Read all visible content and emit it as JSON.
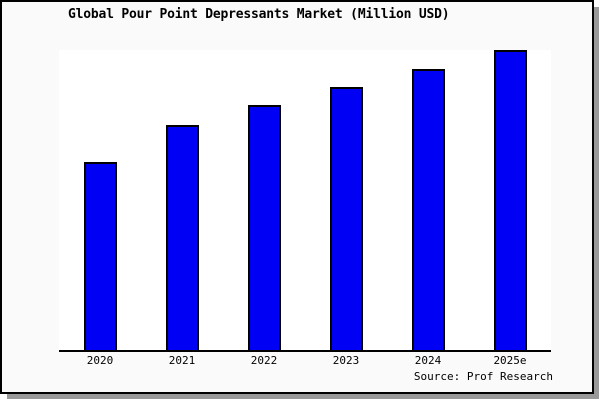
{
  "title": "Global Pour Point Depressants Market (Million USD)",
  "source_label": "Source: Prof Research",
  "colors": {
    "bar_fill": "#0000f5",
    "bar_border": "#000000",
    "frame_background": "#fafafa",
    "plot_background": "#ffffff",
    "frame_border": "#000000",
    "frame_shadow": "#999999",
    "text": "#000000"
  },
  "chart_data": {
    "type": "bar",
    "title": "Global Pour Point Depressants Market (Million USD)",
    "categories": [
      "2020",
      "2021",
      "2022",
      "2023",
      "2024",
      "2025e"
    ],
    "values": [
      62.7,
      75.0,
      81.7,
      87.7,
      93.8,
      100.0
    ],
    "values_note": "Relative bar heights as % of tallest bar; the source image shows no y-axis scale, gridlines or data labels",
    "xlabel": "",
    "ylabel": "",
    "ylim": [
      0,
      100
    ],
    "grid": false,
    "legend": false,
    "x_axis_line": true,
    "y_axis_line": false,
    "source": "Source: Prof Research"
  }
}
